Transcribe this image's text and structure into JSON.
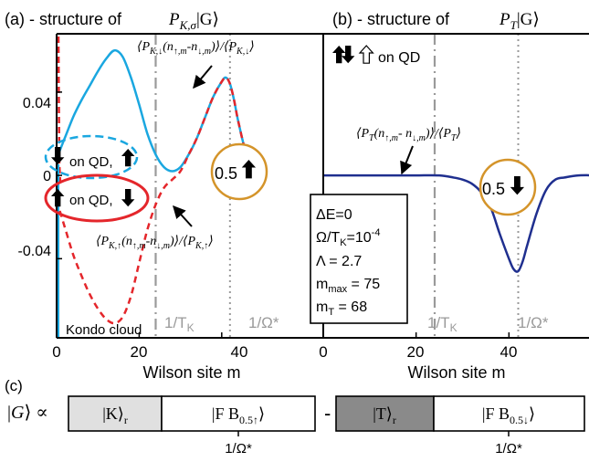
{
  "chart_data": [
    {
      "type": "line",
      "panel_label": "(a) - structure of",
      "panel_symbol": "P_{K,σ}|G⟩",
      "xlabel": "Wilson site m",
      "xlim": [
        0,
        50
      ],
      "ylim": [
        -0.078,
        0.068
      ],
      "xticks": [
        0,
        20,
        40
      ],
      "xticklabels": [
        "0",
        "20",
        "40"
      ],
      "yticks": [
        0.04,
        0,
        -0.04
      ],
      "yticklabels": [
        "0.04",
        "0",
        "-0.04"
      ],
      "vlines": [
        {
          "x": 24,
          "style": "dash-dot",
          "label": "1/T_K"
        },
        {
          "x": 42,
          "style": "dotted",
          "label": "1/Ω*"
        }
      ],
      "series": [
        {
          "name": "⟨P_{K,↓}(n_{↑,m}-n_{↓,m})⟩/⟨P_{K,↓}⟩",
          "color": "#1aa7e0",
          "style": "solid",
          "x": [
            0,
            2,
            4,
            6,
            8,
            10,
            12,
            14,
            16,
            18,
            20,
            22,
            24,
            26,
            28,
            30,
            32,
            34,
            36,
            38,
            40,
            41,
            42,
            43,
            44,
            46,
            48,
            50
          ],
          "y": [
            0.008,
            0.018,
            0.028,
            0.036,
            0.043,
            0.05,
            0.056,
            0.06,
            0.057,
            0.047,
            0.034,
            0.02,
            0.01,
            0.004,
            0.002,
            0.004,
            0.01,
            0.018,
            0.028,
            0.038,
            0.045,
            0.047,
            0.044,
            0.036,
            0.026,
            0.01,
            0.002,
            0.0
          ]
        },
        {
          "name": "⟨P_{K,↑}(n_{↑,m}-n_{↓,m})⟩/⟨P_{K,↑}⟩",
          "color": "#e4262b",
          "style": "dashed",
          "x": [
            0,
            2,
            4,
            6,
            8,
            10,
            12,
            14,
            16,
            18,
            20,
            22,
            24,
            26,
            28,
            30,
            32,
            34,
            36,
            38,
            40,
            41,
            42,
            43,
            44,
            46,
            48,
            50
          ],
          "y": [
            -0.012,
            -0.025,
            -0.038,
            -0.048,
            -0.057,
            -0.064,
            -0.069,
            -0.071,
            -0.068,
            -0.058,
            -0.042,
            -0.026,
            -0.014,
            -0.006,
            -0.002,
            0.002,
            0.01,
            0.018,
            0.028,
            0.038,
            0.045,
            0.047,
            0.044,
            0.036,
            0.026,
            0.01,
            0.002,
            0.0
          ]
        }
      ],
      "annotations": [
        "on QD,",
        "on QD,",
        "0.5",
        "Kondo cloud"
      ]
    },
    {
      "type": "line",
      "panel_label": "(b) - structure of",
      "panel_symbol": "P_T|G⟩",
      "xlabel": "Wilson site m",
      "xlim": [
        0,
        60
      ],
      "ylim": [
        -0.078,
        0.068
      ],
      "xticks": [
        0,
        20,
        40
      ],
      "xticklabels": [
        "0",
        "20",
        "40"
      ],
      "vlines": [
        {
          "x": 24,
          "style": "dash-dot",
          "label": "1/T_K"
        },
        {
          "x": 42,
          "style": "dotted",
          "label": "1/Ω*"
        }
      ],
      "series": [
        {
          "name": "⟨P_T(n_{↑,m}-n_{↓,m})⟩/⟨P_T⟩",
          "color": "#1f2f8f",
          "style": "solid",
          "x": [
            0,
            5,
            10,
            15,
            20,
            25,
            28,
            30,
            32,
            34,
            36,
            38,
            40,
            41,
            42,
            43,
            44,
            46,
            48,
            50,
            52,
            55,
            60
          ],
          "y": [
            0.0,
            0.0,
            0.0,
            0.0,
            0.0,
            0.0,
            -0.001,
            -0.002,
            -0.004,
            -0.008,
            -0.015,
            -0.028,
            -0.04,
            -0.045,
            -0.046,
            -0.041,
            -0.033,
            -0.018,
            -0.007,
            -0.002,
            -0.001,
            0.0,
            0.0
          ]
        }
      ],
      "annotations": [
        "on QD",
        "0.5"
      ],
      "info_box": [
        "ΔE=0",
        "Ω/T_K=10^-4",
        "Λ = 2.7",
        "m_max = 75",
        "m_T = 68"
      ]
    }
  ],
  "panel_c": {
    "label": "(c)",
    "lhs": "|G⟩ ∝",
    "box1": "|K⟩_r",
    "box2": "|F B_{0.5↑}⟩",
    "minus": "-",
    "box3": "|T⟩_r",
    "box4": "|F B_{0.5↓}⟩",
    "tick_label": "1/Ω*"
  },
  "colors": {
    "kondo_up": "#1aa7e0",
    "kondo_down": "#e4262b",
    "triplet": "#1f2f8f",
    "circle": "#d4942a",
    "vline": "#9a9a9a",
    "box_light": "#e0e0e0",
    "box_dark": "#8a8a8a"
  }
}
